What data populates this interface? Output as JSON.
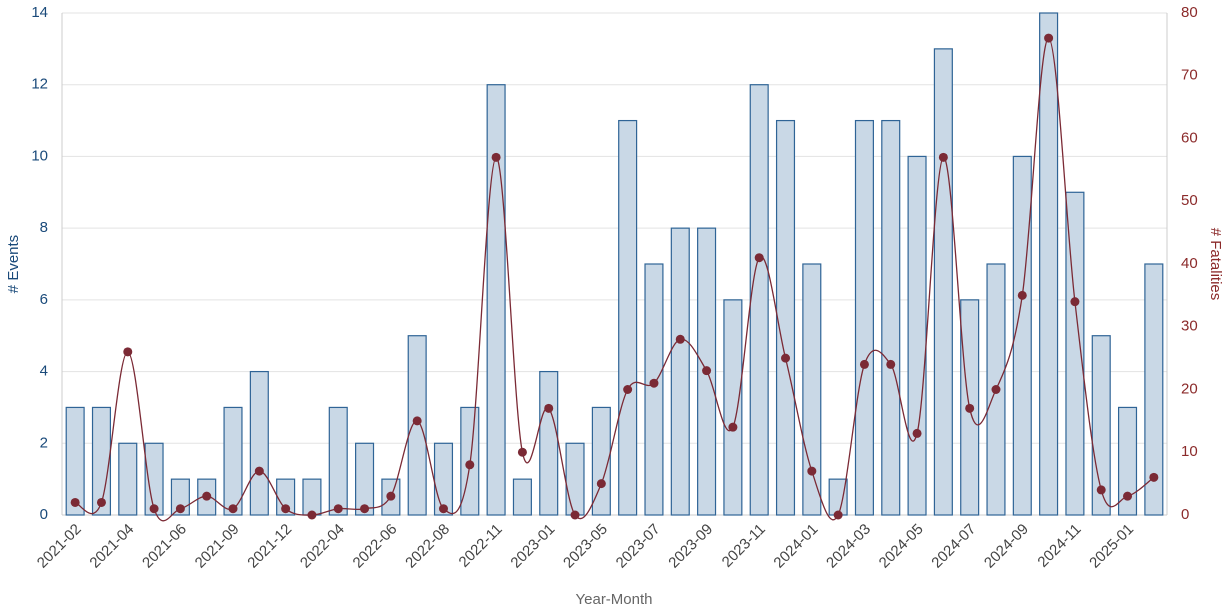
{
  "chart_data": {
    "type": "bar",
    "x_label": "Year-Month",
    "y_label": "# Events",
    "y2_label": "# Fatalities",
    "categories": [
      "2021-02",
      null,
      "2021-04",
      null,
      "2021-06",
      null,
      "2021-09",
      null,
      "2021-12",
      null,
      "2022-04",
      null,
      "2022-06",
      null,
      "2022-08",
      null,
      "2022-11",
      null,
      "2023-01",
      null,
      "2023-05",
      null,
      "2023-07",
      null,
      "2023-09",
      null,
      "2023-11",
      null,
      "2024-01",
      null,
      "2024-03",
      null,
      "2024-05",
      null,
      "2024-07",
      null,
      "2024-09",
      null,
      "2024-11",
      null,
      "2025-01",
      null
    ],
    "series": [
      {
        "type": "bar",
        "color": "#c9d8e6",
        "edge_color": "#2f6496",
        "values": [
          3,
          3,
          2,
          2,
          1,
          1,
          3,
          4,
          1,
          1,
          3,
          2,
          1,
          5,
          2,
          3,
          12,
          1,
          4,
          2,
          3,
          11,
          7,
          8,
          8,
          6,
          12,
          11,
          7,
          1,
          11,
          11,
          10,
          13,
          6,
          7,
          10,
          14,
          9,
          5,
          3,
          7
        ]
      },
      {
        "type": "line",
        "axis": "y2",
        "color": "#7b2a35",
        "values": [
          2,
          2,
          26,
          1,
          1,
          3,
          1,
          7,
          1,
          0,
          1,
          1,
          3,
          15,
          1,
          8,
          57,
          10,
          17,
          0,
          5,
          20,
          21,
          28,
          23,
          14,
          41,
          25,
          7,
          0,
          24,
          24,
          13,
          57,
          17,
          20,
          35,
          76,
          34,
          4,
          3,
          6
        ]
      }
    ],
    "ylim": [
      0,
      14
    ],
    "yticks": [
      0,
      2,
      4,
      6,
      8,
      10,
      12,
      14
    ],
    "y2lim": [
      0,
      80
    ],
    "y2ticks": [
      0,
      10,
      20,
      30,
      40,
      50,
      60,
      70,
      80
    ],
    "grid": true
  }
}
